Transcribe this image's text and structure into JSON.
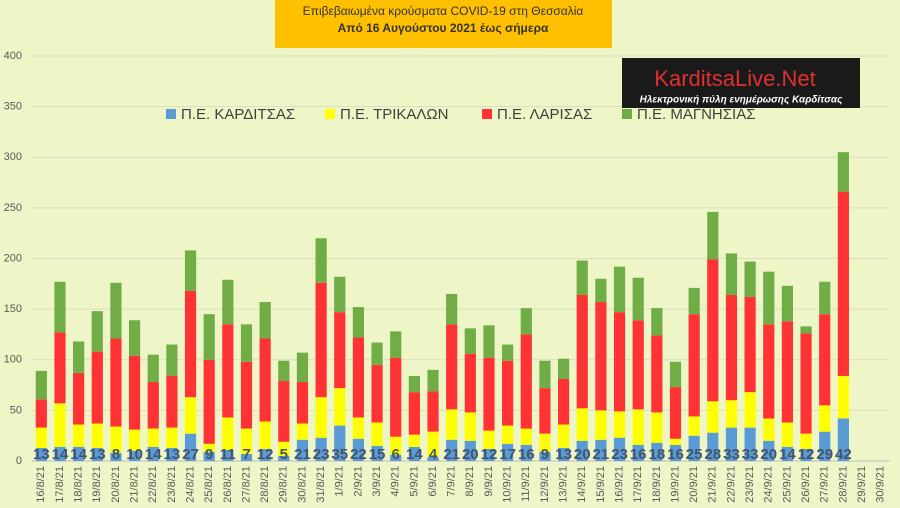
{
  "chart_data": {
    "type": "stacked-bar",
    "title": "Επιβεβαιωμένα κρούσματα COVID-19 στη Θεσσαλία",
    "subtitle": "Από 16 Αυγούστου 2021 έως σήμερα",
    "logo": {
      "title": "KarditsaLive.Net",
      "subtitle": "Ηλεκτρονική πύλη ενημέρωσης Καρδίτσας"
    },
    "categories": [
      "16/8/21",
      "17/8/21",
      "18/8/21",
      "19/8/21",
      "20/8/21",
      "21/8/21",
      "22/8/21",
      "23/8/21",
      "24/8/21",
      "25/8/21",
      "26/8/21",
      "27/8/21",
      "28/8/21",
      "29/8/21",
      "30/8/21",
      "31/8/21",
      "1/9/21",
      "2/9/21",
      "3/9/21",
      "4/9/21",
      "5/9/21",
      "6/9/21",
      "7/9/21",
      "8/9/21",
      "9/9/21",
      "10/9/21",
      "11/9/21",
      "12/9/21",
      "13/9/21",
      "14/9/21",
      "15/9/21",
      "16/9/21",
      "17/9/21",
      "18/9/21",
      "19/9/21",
      "20/9/21",
      "21/9/21",
      "22/9/21",
      "23/9/21",
      "24/9/21",
      "25/9/21",
      "26/9/21",
      "27/9/21",
      "28/9/21",
      "29/9/21",
      "30/9/21"
    ],
    "series": [
      {
        "name": "Π.Ε. ΚΑΡΔΙΤΣΑΣ",
        "color": "#5b9bd5",
        "values": [
          13,
          14,
          14,
          13,
          8,
          10,
          14,
          13,
          27,
          9,
          11,
          7,
          12,
          5,
          21,
          23,
          35,
          22,
          15,
          6,
          14,
          4,
          21,
          20,
          12,
          17,
          16,
          9,
          13,
          20,
          21,
          23,
          16,
          18,
          16,
          25,
          28,
          33,
          33,
          20,
          14,
          12,
          29,
          42,
          null,
          null
        ]
      },
      {
        "name": "Π.Ε. ΤΡΙΚΑΛΩΝ",
        "color": "#ffff00",
        "values": [
          20,
          43,
          22,
          24,
          26,
          21,
          18,
          20,
          36,
          8,
          32,
          25,
          27,
          14,
          16,
          40,
          37,
          21,
          23,
          18,
          12,
          25,
          30,
          28,
          18,
          18,
          16,
          18,
          23,
          32,
          29,
          26,
          35,
          30,
          6,
          19,
          31,
          27,
          35,
          22,
          24,
          15,
          26,
          42,
          null,
          null
        ]
      },
      {
        "name": "Π.Ε. ΛΑΡΙΣΑΣ",
        "color": "#ff3333",
        "values": [
          28,
          70,
          51,
          71,
          87,
          73,
          46,
          51,
          105,
          83,
          92,
          66,
          82,
          60,
          41,
          113,
          75,
          79,
          57,
          78,
          42,
          40,
          84,
          58,
          72,
          64,
          93,
          45,
          45,
          112,
          107,
          98,
          88,
          76,
          51,
          101,
          140,
          104,
          94,
          93,
          100,
          99,
          90,
          182,
          null,
          null
        ]
      },
      {
        "name": "Π.Ε. ΜΑΓΝΗΣΙΑΣ",
        "color": "#70ad47",
        "values": [
          28,
          50,
          31,
          40,
          55,
          35,
          27,
          31,
          40,
          45,
          44,
          37,
          36,
          20,
          29,
          44,
          35,
          30,
          22,
          26,
          16,
          21,
          30,
          25,
          32,
          16,
          26,
          27,
          20,
          34,
          23,
          45,
          42,
          27,
          25,
          26,
          47,
          41,
          35,
          52,
          35,
          7,
          32,
          39,
          null,
          null
        ]
      }
    ],
    "ylim": [
      0,
      400
    ],
    "yticks": [
      0,
      50,
      100,
      150,
      200,
      250,
      300,
      350,
      400
    ],
    "grid": true
  }
}
